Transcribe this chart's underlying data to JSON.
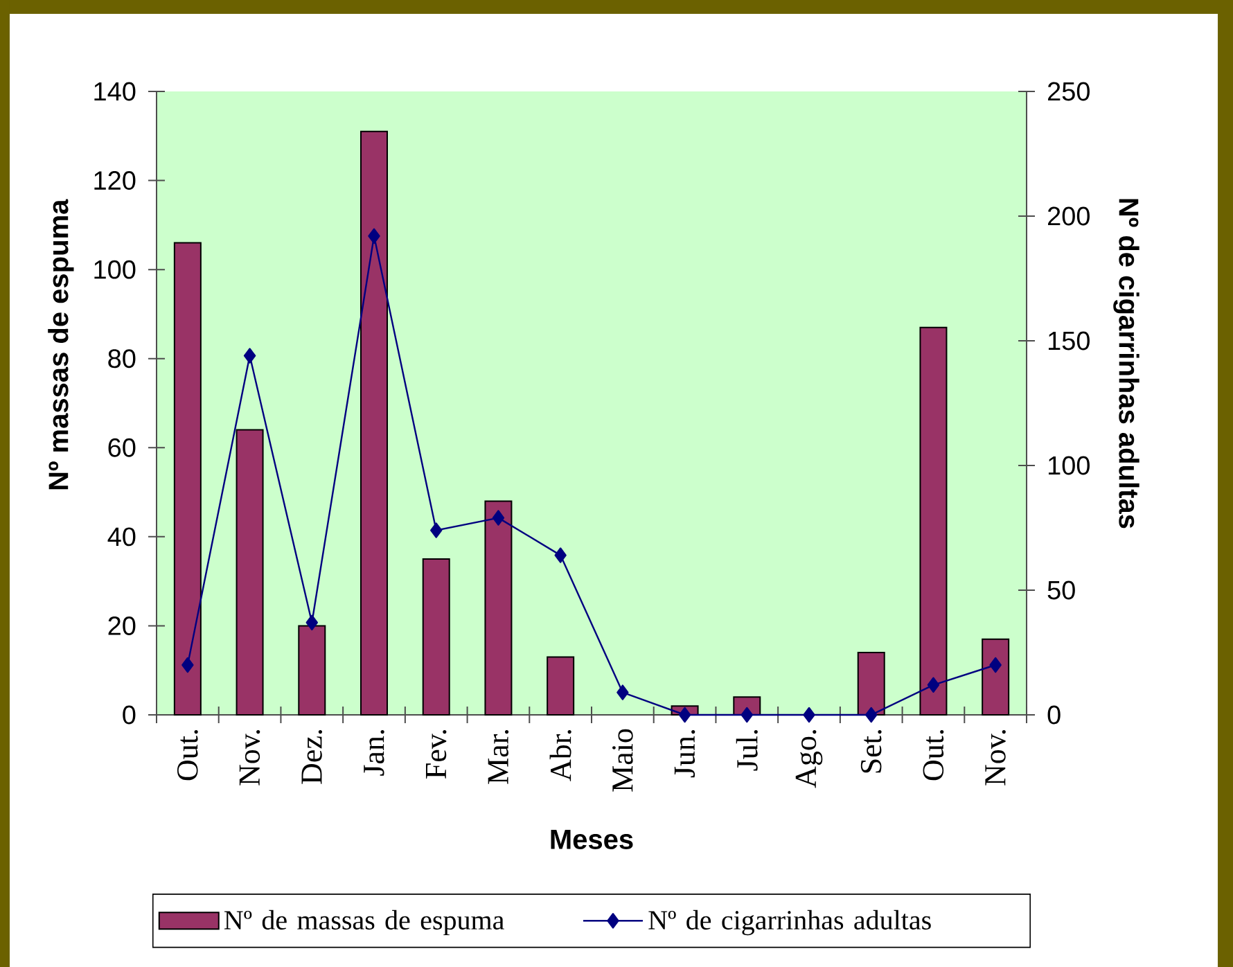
{
  "chart_data": {
    "type": "bar",
    "xlabel": "Meses",
    "ylabel": "Nº massas de espuma",
    "y2label": "Nº de cigarrinhas adultas",
    "categories": [
      "Out.",
      "Nov.",
      "Dez.",
      "Jan.",
      "Fev.",
      "Mar.",
      "Abr.",
      "Maio",
      "Jun.",
      "Jul.",
      "Ago.",
      "Set.",
      "Out.",
      "Nov."
    ],
    "series": [
      {
        "name": "Nº de massas de espuma",
        "color": "#993366",
        "values": [
          106,
          64,
          20,
          131,
          35,
          48,
          13,
          null,
          2,
          4,
          null,
          14,
          87,
          17
        ]
      },
      {
        "name": "Nº de cigarrinhas adultas",
        "type": "line",
        "axis": "y2",
        "color": "#000080",
        "marker": "diamond",
        "values": [
          20,
          144,
          37,
          192,
          74,
          79,
          64,
          9,
          0,
          0,
          0,
          0,
          12,
          20
        ]
      }
    ],
    "ylim": [
      0,
      140
    ],
    "yticks": [
      0,
      20,
      40,
      60,
      80,
      100,
      120,
      140
    ],
    "y2lim": [
      0,
      250
    ],
    "y2ticks": [
      0,
      50,
      100,
      150,
      200,
      250
    ],
    "legend": "bottom"
  }
}
